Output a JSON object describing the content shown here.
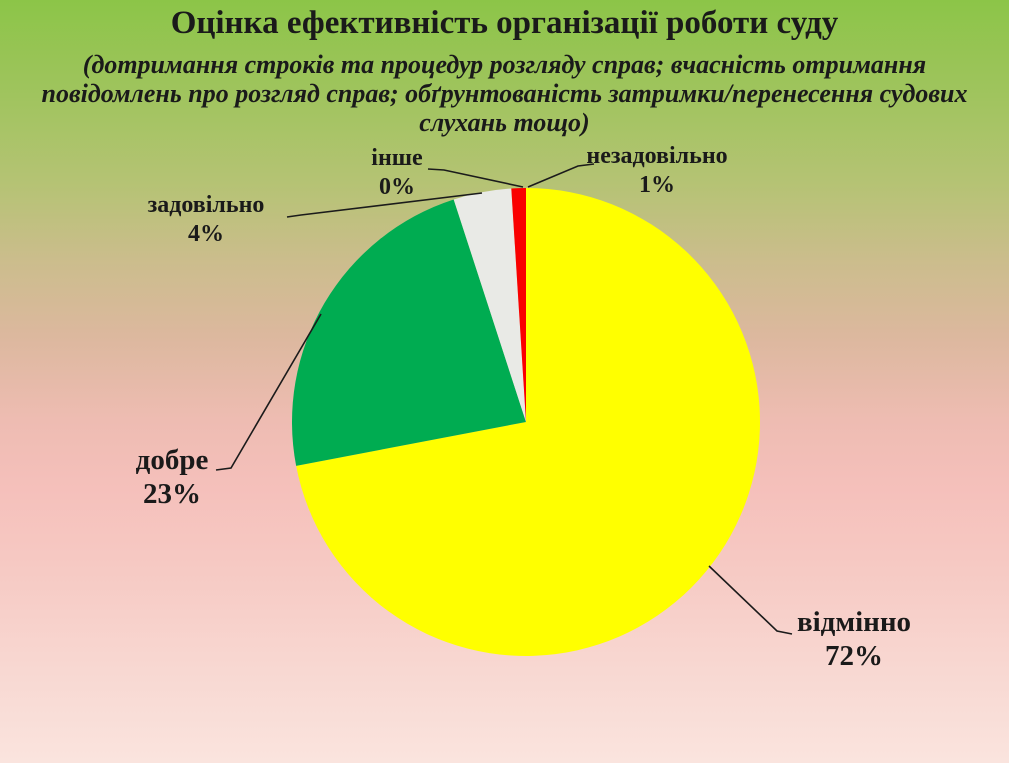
{
  "chart_data": {
    "type": "pie",
    "title": "Оцінка ефективність організації роботи суду",
    "subtitle_lines": [
      "(дотримання строків та процедур розгляду справ; вчасність отримання",
      "повідомлень про розгляд справ; обґрунтованість затримки/перенесення судових",
      "слухань тощо)"
    ],
    "unit": "%",
    "total": 100,
    "start_angle_deg": 0,
    "direction": "clockwise",
    "legend": "off",
    "labels_style": "outside-with-leader-lines",
    "slices": [
      {
        "label": "відмінно",
        "value": 72,
        "pct_text": "72%",
        "color": "#ffff00"
      },
      {
        "label": "добре",
        "value": 23,
        "pct_text": "23%",
        "color": "#00ac51"
      },
      {
        "label": "задовільно",
        "value": 4,
        "pct_text": "4%",
        "color": "#e9eae6"
      },
      {
        "label": "незадовільно",
        "value": 1,
        "pct_text": "1%",
        "color": "#fa0000"
      },
      {
        "label": "інше",
        "value": 0,
        "pct_text": "0%",
        "color": null
      }
    ]
  }
}
